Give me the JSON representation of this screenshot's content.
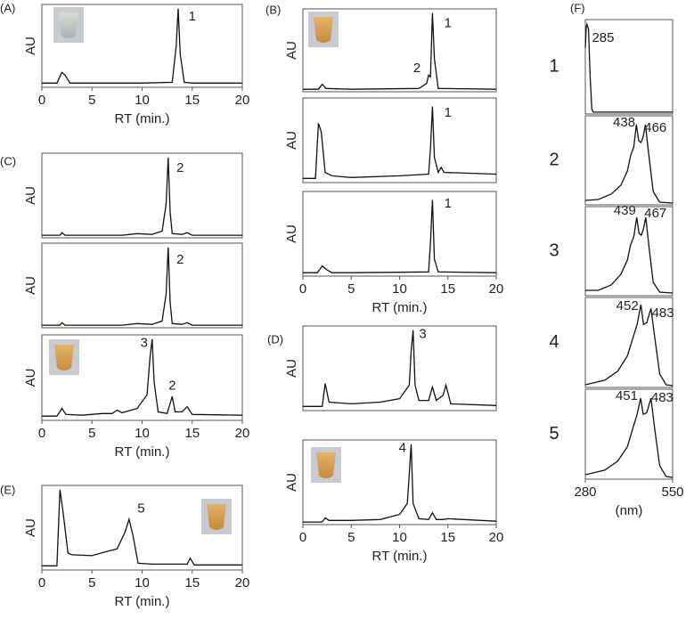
{
  "chart_data": [
    {
      "type": "line",
      "panel": "(A)",
      "ylabel": "AU",
      "xlabel": "RT (min.)",
      "xlim": [
        0,
        20
      ],
      "xticks": [
        0,
        5,
        10,
        15,
        20
      ],
      "ylim": [
        0,
        100
      ],
      "x": [
        0,
        1.5,
        2,
        2.3,
        2.8,
        5,
        10,
        13,
        13.4,
        13.6,
        13.8,
        14.2,
        15,
        20
      ],
      "series": [
        {
          "color": "#111111",
          "values": [
            5,
            5,
            18,
            15,
            5,
            5,
            5,
            6,
            50,
            95,
            40,
            6,
            5,
            5
          ]
        }
      ],
      "annotations": [
        {
          "text": "1",
          "x": 15,
          "y": 85
        }
      ]
    },
    {
      "type": "line",
      "panel": "(B)",
      "ylabel": "AU",
      "xlim": [
        0,
        20
      ],
      "ylim": [
        0,
        100
      ],
      "x": [
        0,
        1.6,
        2,
        2.4,
        5,
        12,
        12.8,
        13,
        13.2,
        13.4,
        13.6,
        14,
        20
      ],
      "series": [
        {
          "color": "#111111",
          "values": [
            3,
            3,
            9,
            4,
            3,
            4,
            10,
            20,
            18,
            95,
            40,
            4,
            3
          ]
        }
      ],
      "annotations": [
        {
          "text": "1",
          "x": 15,
          "y": 82
        },
        {
          "text": "2",
          "x": 11.8,
          "y": 28
        }
      ]
    },
    {
      "type": "line",
      "ylabel": "AU",
      "xlim": [
        0,
        20
      ],
      "ylim": [
        0,
        100
      ],
      "x": [
        0,
        1.3,
        1.6,
        1.9,
        2.3,
        3,
        5,
        10,
        13,
        13.2,
        13.4,
        13.6,
        14,
        14.3,
        14.6,
        20
      ],
      "series": [
        {
          "color": "#111111",
          "values": [
            5,
            5,
            70,
            60,
            12,
            8,
            6,
            8,
            10,
            40,
            90,
            30,
            12,
            18,
            12,
            10
          ]
        }
      ],
      "annotations": [
        {
          "text": "1",
          "x": 15,
          "y": 82
        }
      ]
    },
    {
      "type": "line",
      "ylabel": "AU",
      "xlabel": "RT (min.)",
      "xlim": [
        0,
        20
      ],
      "xticks": [
        0,
        5,
        10,
        15,
        20
      ],
      "ylim": [
        0,
        100
      ],
      "x": [
        0,
        1.5,
        2,
        2.4,
        3,
        5,
        13,
        13.2,
        13.4,
        13.6,
        14,
        20
      ],
      "series": [
        {
          "color": "#111111",
          "values": [
            4,
            4,
            12,
            8,
            4,
            4,
            5,
            40,
            90,
            20,
            5,
            4
          ]
        }
      ],
      "annotations": [
        {
          "text": "1",
          "x": 15,
          "y": 85
        }
      ]
    },
    {
      "type": "line",
      "panel": "(C)",
      "ylabel": "AU",
      "xlim": [
        0,
        20
      ],
      "ylim": [
        0,
        100
      ],
      "x": [
        0,
        1.8,
        2,
        2.3,
        5,
        8,
        9.5,
        11,
        12,
        12.4,
        12.6,
        12.8,
        13,
        14,
        14.5,
        15,
        20
      ],
      "series": [
        {
          "color": "#111111",
          "values": [
            3,
            3,
            6,
            3,
            3,
            3,
            5,
            4,
            8,
            40,
            95,
            30,
            5,
            4,
            6,
            3,
            3
          ]
        }
      ],
      "annotations": [
        {
          "text": "2",
          "x": 13.8,
          "y": 82
        }
      ]
    },
    {
      "type": "line",
      "ylabel": "AU",
      "xlim": [
        0,
        20
      ],
      "ylim": [
        0,
        100
      ],
      "x": [
        0,
        1.8,
        2,
        2.3,
        5,
        8,
        9.5,
        11,
        12,
        12.4,
        12.6,
        12.8,
        13,
        14,
        14.5,
        15,
        20
      ],
      "series": [
        {
          "color": "#111111",
          "values": [
            3,
            3,
            6,
            3,
            3,
            3,
            5,
            4,
            8,
            40,
            95,
            30,
            5,
            4,
            6,
            3,
            3
          ]
        }
      ],
      "annotations": [
        {
          "text": "2",
          "x": 13.8,
          "y": 80
        }
      ]
    },
    {
      "type": "line",
      "ylabel": "AU",
      "xlabel": "RT (min.)",
      "xlim": [
        0,
        20
      ],
      "xticks": [
        0,
        5,
        10,
        15,
        20
      ],
      "ylim": [
        0,
        100
      ],
      "x": [
        0,
        1.5,
        2,
        2.4,
        4,
        6,
        7,
        7.5,
        8,
        9.5,
        10.5,
        10.8,
        11,
        11.2,
        11.6,
        12.5,
        13,
        13.3,
        14,
        14.5,
        15,
        20
      ],
      "series": [
        {
          "color": "#111111",
          "values": [
            5,
            5,
            14,
            7,
            6,
            8,
            8,
            12,
            9,
            14,
            30,
            75,
            95,
            45,
            10,
            8,
            28,
            10,
            10,
            16,
            7,
            6
          ]
        }
      ],
      "annotations": [
        {
          "text": "3",
          "x": 10.2,
          "y": 90
        },
        {
          "text": "2",
          "x": 13,
          "y": 40
        }
      ]
    },
    {
      "type": "line",
      "panel": "(D)",
      "ylabel": "AU",
      "xlim": [
        0,
        20
      ],
      "ylim": [
        0,
        100
      ],
      "x": [
        0,
        2,
        2.3,
        2.7,
        5,
        8,
        10,
        11,
        11.2,
        11.4,
        11.6,
        12,
        13,
        13.4,
        13.8,
        14.5,
        14.8,
        15.3,
        20
      ],
      "series": [
        {
          "color": "#111111",
          "values": [
            5,
            5,
            32,
            10,
            8,
            10,
            14,
            30,
            70,
            95,
            30,
            12,
            12,
            28,
            12,
            18,
            30,
            8,
            6
          ]
        }
      ],
      "annotations": [
        {
          "text": "3",
          "x": 12.4,
          "y": 90
        }
      ]
    },
    {
      "type": "line",
      "ylabel": "AU",
      "xlabel": "RT (min.)",
      "xlim": [
        0,
        20
      ],
      "xticks": [
        0,
        5,
        10,
        15,
        20
      ],
      "ylim": [
        0,
        100
      ],
      "x": [
        0,
        2,
        2.3,
        2.7,
        5,
        8,
        10,
        10.8,
        11,
        11.2,
        11.4,
        12,
        13,
        13.4,
        13.8,
        14.5,
        15,
        20
      ],
      "series": [
        {
          "color": "#111111",
          "values": [
            3,
            3,
            8,
            5,
            5,
            6,
            12,
            25,
            60,
            95,
            25,
            7,
            6,
            14,
            6,
            6,
            7,
            4
          ]
        }
      ],
      "annotations": [
        {
          "text": "4",
          "x": 10.3,
          "y": 90
        }
      ]
    },
    {
      "type": "line",
      "panel": "(E)",
      "ylabel": "AU",
      "xlabel": "RT (min.)",
      "xlim": [
        0,
        20
      ],
      "xticks": [
        0,
        5,
        10,
        15,
        20
      ],
      "ylim": [
        0,
        100
      ],
      "x": [
        0,
        1.5,
        1.8,
        2.1,
        2.6,
        3,
        5,
        6.5,
        7.5,
        8.3,
        8.7,
        9.1,
        9.6,
        11,
        13,
        14.5,
        14.8,
        15.2,
        20
      ],
      "series": [
        {
          "color": "#111111",
          "values": [
            5,
            5,
            95,
            70,
            20,
            18,
            17,
            22,
            25,
            45,
            60,
            40,
            8,
            7,
            7,
            7,
            14,
            6,
            6
          ]
        }
      ],
      "annotations": [
        {
          "text": "5",
          "x": 9.9,
          "y": 72
        }
      ]
    },
    {
      "type": "line",
      "panel": "(F)",
      "label": "1",
      "xlim": [
        280,
        550
      ],
      "ylim": [
        0,
        100
      ],
      "x": [
        280,
        283,
        285,
        290,
        295,
        300,
        305,
        550
      ],
      "series": [
        {
          "color": "#111111",
          "values": [
            70,
            92,
            95,
            90,
            40,
            5,
            2,
            2
          ]
        }
      ],
      "annotations": [
        {
          "text": "285",
          "x": 335,
          "y": 80
        }
      ]
    },
    {
      "type": "line",
      "label": "2",
      "xlim": [
        280,
        550
      ],
      "ylim": [
        0,
        100
      ],
      "x": [
        280,
        320,
        360,
        390,
        410,
        420,
        430,
        438,
        445,
        452,
        458,
        466,
        475,
        490,
        510,
        550
      ],
      "series": [
        {
          "color": "#111111",
          "values": [
            5,
            6,
            12,
            22,
            38,
            55,
            65,
            90,
            72,
            70,
            75,
            90,
            60,
            15,
            3,
            2
          ]
        }
      ],
      "annotations": [
        {
          "text": "438",
          "x": 400,
          "y": 92
        },
        {
          "text": "466",
          "x": 497,
          "y": 86
        }
      ]
    },
    {
      "type": "line",
      "label": "3",
      "xlim": [
        280,
        550
      ],
      "ylim": [
        0,
        100
      ],
      "x": [
        280,
        320,
        360,
        390,
        410,
        420,
        430,
        439,
        446,
        453,
        459,
        467,
        476,
        490,
        510,
        550
      ],
      "series": [
        {
          "color": "#111111",
          "values": [
            6,
            6,
            12,
            24,
            40,
            57,
            66,
            88,
            70,
            68,
            74,
            88,
            58,
            15,
            4,
            3
          ]
        }
      ],
      "annotations": [
        {
          "text": "439",
          "x": 402,
          "y": 95
        },
        {
          "text": "467",
          "x": 497,
          "y": 92
        }
      ]
    },
    {
      "type": "line",
      "label": "4",
      "xlim": [
        280,
        550
      ],
      "ylim": [
        0,
        100
      ],
      "x": [
        280,
        340,
        380,
        410,
        430,
        440,
        452,
        460,
        470,
        483,
        495,
        510,
        530,
        550
      ],
      "series": [
        {
          "color": "#111111",
          "values": [
            3,
            8,
            18,
            35,
            58,
            70,
            92,
            70,
            72,
            88,
            55,
            15,
            3,
            2
          ]
        }
      ],
      "annotations": [
        {
          "text": "452",
          "x": 410,
          "y": 90
        },
        {
          "text": "483",
          "x": 520,
          "y": 82
        }
      ]
    },
    {
      "type": "line",
      "label": "5",
      "xlim": [
        280,
        550
      ],
      "xlabel": "(nm)",
      "xticks": [
        280,
        550
      ],
      "ylim": [
        0,
        100
      ],
      "x": [
        280,
        340,
        380,
        410,
        430,
        440,
        451,
        459,
        470,
        483,
        495,
        510,
        530,
        550
      ],
      "series": [
        {
          "color": "#111111",
          "values": [
            5,
            10,
            20,
            36,
            60,
            72,
            90,
            72,
            74,
            90,
            55,
            15,
            3,
            2
          ]
        }
      ],
      "annotations": [
        {
          "text": "451",
          "x": 408,
          "y": 92
        },
        {
          "text": "483",
          "x": 518,
          "y": 90
        }
      ]
    }
  ]
}
